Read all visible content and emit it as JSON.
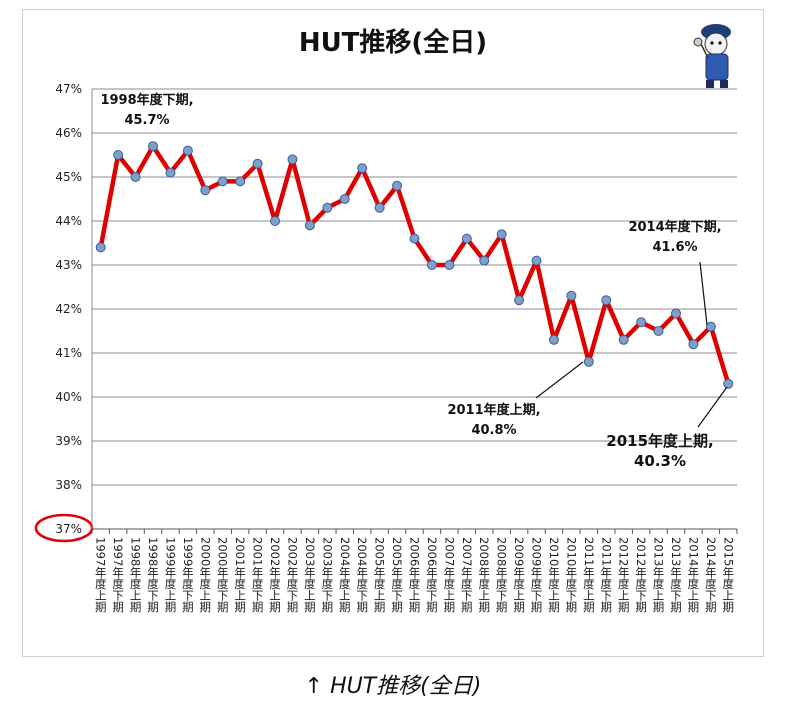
{
  "caption": "↑ HUT推移(全日)",
  "chart_data": {
    "type": "line",
    "title": "HUT推移(全日)",
    "xlabel": "",
    "ylabel": "",
    "ylim": [
      37,
      47
    ],
    "y_ticks": [
      "47%",
      "46%",
      "45%",
      "44%",
      "43%",
      "42%",
      "41%",
      "40%",
      "39%",
      "38%",
      "37%"
    ],
    "grid": true,
    "line_color": "#e00000",
    "marker_color": "#7f9fc8",
    "highlight_color": "#e00000",
    "categories": [
      "1997年度上期",
      "1997年度下期",
      "1998年度上期",
      "1998年度下期",
      "1999年度上期",
      "1999年度下期",
      "2000年度上期",
      "2000年度下期",
      "2001年度上期",
      "2001年度下期",
      "2002年度上期",
      "2002年度下期",
      "2003年度上期",
      "2003年度下期",
      "2004年度上期",
      "2004年度下期",
      "2005年度上期",
      "2005年度下期",
      "2006年度上期",
      "2006年度下期",
      "2007年度上期",
      "2007年度下期",
      "2008年度上期",
      "2008年度下期",
      "2009年度上期",
      "2009年度下期",
      "2010年度上期",
      "2010年度下期",
      "2011年度上期",
      "2011年度下期",
      "2012年度上期",
      "2012年度下期",
      "2013年度上期",
      "2013年度下期",
      "2014年度上期",
      "2014年度下期",
      "2015年度上期"
    ],
    "series": [
      {
        "values": [
          43.4,
          45.5,
          45.0,
          45.7,
          45.1,
          45.6,
          44.7,
          44.9,
          44.9,
          45.3,
          44.0,
          45.4,
          43.9,
          44.3,
          44.5,
          45.2,
          44.3,
          44.8,
          43.6,
          43.0,
          43.0,
          43.6,
          43.1,
          43.7,
          42.2,
          43.1,
          41.3,
          42.3,
          40.8,
          42.2,
          41.3,
          41.7,
          41.5,
          41.9,
          41.2,
          41.6,
          40.3
        ]
      }
    ],
    "annotations": [
      {
        "lines": [
          "1998年度下期,",
          "45.7%"
        ],
        "index": 3,
        "pointer": false,
        "big": false
      },
      {
        "lines": [
          "2014年度下期,",
          "41.6%"
        ],
        "index": 35,
        "pointer": true,
        "big": false
      },
      {
        "lines": [
          "2011年度上期,",
          "40.8%"
        ],
        "index": 28,
        "pointer": true,
        "big": false
      },
      {
        "lines": [
          "2015年度上期,",
          "40.3%"
        ],
        "index": 36,
        "pointer": true,
        "big": true
      }
    ],
    "highlighted_tick": "37%"
  }
}
